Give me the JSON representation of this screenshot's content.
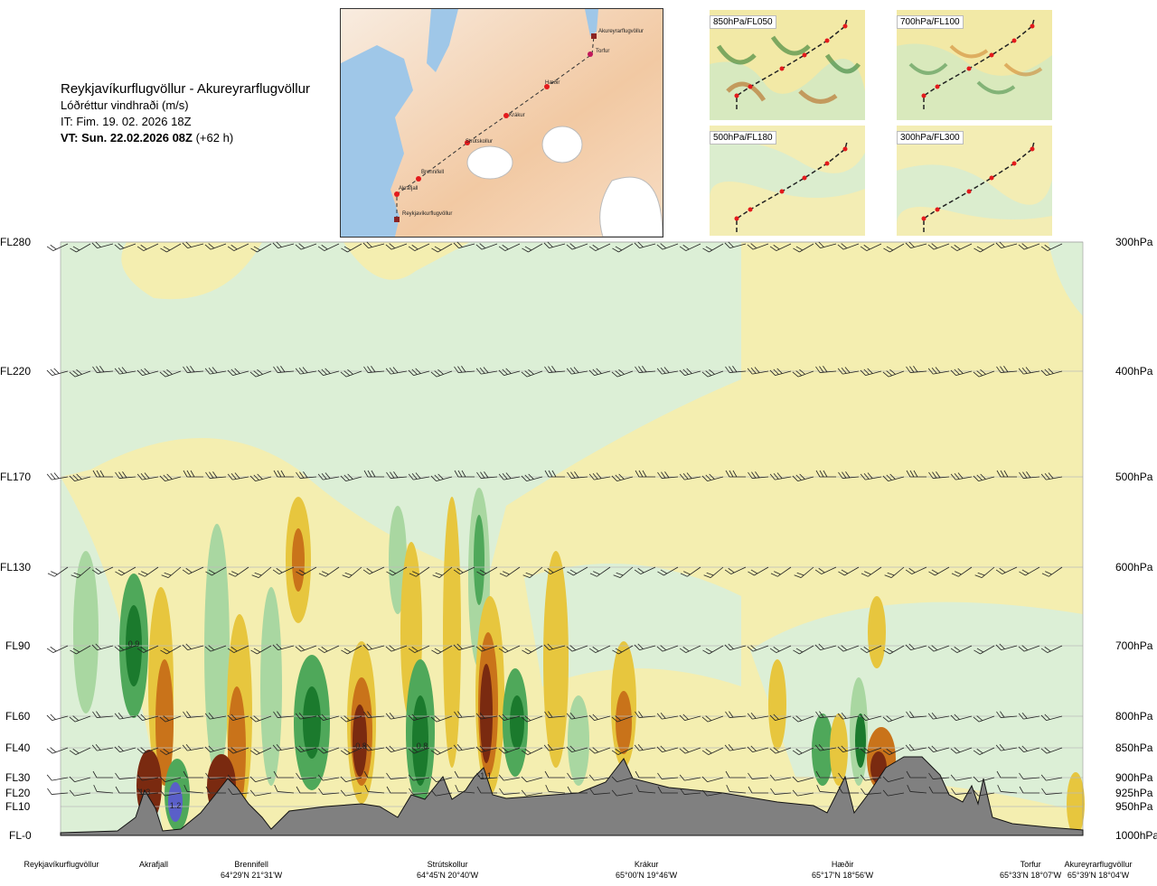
{
  "header": {
    "route": "Reykjavíkurflugvöllur - Akureyrarflugvöllur",
    "variable": "Lóðréttur vindhraði (m/s)",
    "it": "IT: Fim. 19. 02. 2026 18Z",
    "vt_bold": "VT: Sun. 22.02.2026 08Z",
    "vt_offset": "(+62 h)"
  },
  "map": {
    "places": [
      "Akureyrarflugvöllur",
      "Torfur",
      "Hæðir",
      "Krákur",
      "Strútskollur",
      "Brennifell",
      "Akrafjall",
      "Reykjavíkurflugvöllur"
    ]
  },
  "mini_maps": [
    {
      "label": "850hPa/FL050"
    },
    {
      "label": "700hPa/FL100"
    },
    {
      "label": "500hPa/FL180"
    },
    {
      "label": "300hPa/FL300"
    }
  ],
  "colors": {
    "strong_down": "#7a2a10",
    "down_mid": "#c9731a",
    "down_weak": "#e7c63e",
    "down_faint": "#f4eeb0",
    "up_faint": "#dcefd6",
    "up_weak": "#a9d7a1",
    "up_mid": "#4fa85a",
    "up_strong": "#1b7a2d",
    "up_extreme": "#5a5fc9",
    "terrain": "#808080"
  },
  "chart_data": {
    "type": "heatmap",
    "y_levels": [
      {
        "fl": "FL280",
        "p": "300hPa"
      },
      {
        "fl": "FL220",
        "p": "400hPa"
      },
      {
        "fl": "FL170",
        "p": "500hPa"
      },
      {
        "fl": "FL130",
        "p": "600hPa"
      },
      {
        "fl": "FL90",
        "p": "700hPa"
      },
      {
        "fl": "FL60",
        "p": "800hPa"
      },
      {
        "fl": "FL40",
        "p": "850hPa"
      },
      {
        "fl": "FL30",
        "p": "900hPa"
      },
      {
        "fl": "FL20",
        "p": "925hPa"
      },
      {
        "fl": "FL10",
        "p": "950hPa"
      },
      {
        "fl": "FL-0",
        "p": "1000hPa"
      }
    ],
    "locations": [
      {
        "name": "Reykjavíkurflugvöllur",
        "coord": ""
      },
      {
        "name": "Akrafjall",
        "coord": ""
      },
      {
        "name": "Brennifell",
        "coord": "64°29'N 21°31'W"
      },
      {
        "name": "Strútskollur",
        "coord": "64°45'N 20°40'W"
      },
      {
        "name": "Krákur",
        "coord": "65°00'N 19°46'W"
      },
      {
        "name": "Hæðir",
        "coord": "65°17'N 18°56'W"
      },
      {
        "name": "Torfur",
        "coord": "65°33'N 18°07'W"
      },
      {
        "name": "Akureyrarflugvöllur",
        "coord": "65°39'N 18°04'W"
      }
    ],
    "extrema_labels": [
      {
        "text": "0.9"
      },
      {
        "text": "1.3"
      },
      {
        "text": "1.2"
      },
      {
        "text": "-0.8"
      },
      {
        "text": "0.8"
      },
      {
        "text": "-1.1"
      }
    ]
  }
}
